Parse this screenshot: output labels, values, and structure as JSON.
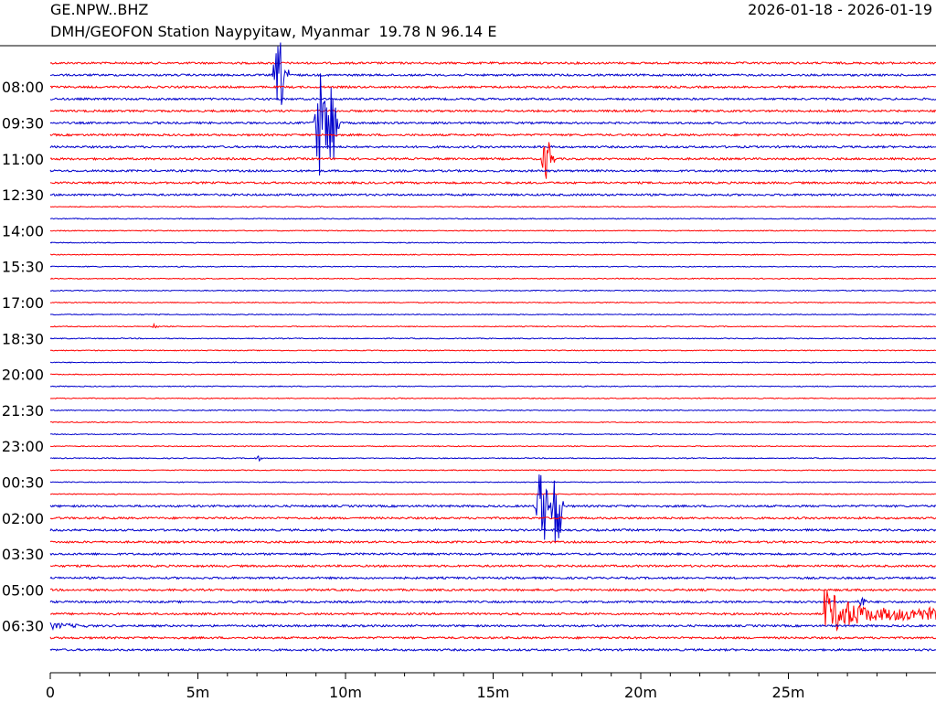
{
  "header": {
    "station_code": "GE.NPW..BHZ",
    "station_description": "DMH/GEOFON Station Naypyitaw, Myanmar  19.78 N 96.14 E",
    "date_range": "2026-01-18 - 2026-01-19"
  },
  "colors": {
    "trace_odd": "#ff0000",
    "trace_even": "#0000cc",
    "axis": "#000000"
  },
  "chart_data": {
    "type": "line",
    "title": "GE.NPW..BHZ",
    "subtitle": "DMH/GEOFON Station Naypyitaw, Myanmar  19.78 N 96.14 E",
    "xlabel": "",
    "ylabel": "",
    "x_unit": "minutes",
    "xlim": [
      0,
      30
    ],
    "x_ticks": [
      0,
      5,
      10,
      15,
      20,
      25
    ],
    "x_tick_labels": [
      "0",
      "5m",
      "10m",
      "15m",
      "20m",
      "25m"
    ],
    "x_minor_step": 1,
    "trace_count": 50,
    "trace_interval_minutes": 30,
    "time_labels": [
      "08:00",
      "09:30",
      "11:00",
      "12:30",
      "14:00",
      "15:30",
      "17:00",
      "18:30",
      "20:00",
      "21:30",
      "23:00",
      "00:30",
      "02:00",
      "03:30",
      "05:00",
      "06:30"
    ],
    "time_label_trace_index": [
      2,
      5,
      8,
      11,
      14,
      17,
      20,
      23,
      26,
      29,
      32,
      35,
      38,
      41,
      44,
      47
    ],
    "grid": false,
    "series": [
      {
        "trace": 1,
        "events": [
          {
            "t": 7.5,
            "amp": 38,
            "dur": 0.6
          }
        ]
      },
      {
        "trace": 5,
        "events": [
          {
            "t": 8.9,
            "amp": 60,
            "dur": 0.5
          },
          {
            "t": 9.3,
            "amp": 60,
            "dur": 0.5
          }
        ]
      },
      {
        "trace": 8,
        "events": [
          {
            "t": 16.6,
            "amp": 24,
            "dur": 0.5
          }
        ]
      },
      {
        "trace": 22,
        "events": [
          {
            "t": 3.4,
            "amp": 3,
            "dur": 0.3
          }
        ]
      },
      {
        "trace": 33,
        "events": [
          {
            "t": 6.9,
            "amp": 3,
            "dur": 0.3
          }
        ]
      },
      {
        "trace": 37,
        "events": [
          {
            "t": 16.4,
            "amp": 45,
            "dur": 0.5
          },
          {
            "t": 16.9,
            "amp": 45,
            "dur": 0.5
          }
        ]
      },
      {
        "trace": 45,
        "events": [
          {
            "t": 27.3,
            "amp": 6,
            "dur": 0.4
          }
        ]
      },
      {
        "trace": 46,
        "events": [
          {
            "t": 26.2,
            "amp": 28,
            "dur": 4.0
          }
        ]
      },
      {
        "trace": 47,
        "events": [
          {
            "t": 0.0,
            "amp": 4,
            "dur": 2.9
          }
        ]
      }
    ]
  }
}
